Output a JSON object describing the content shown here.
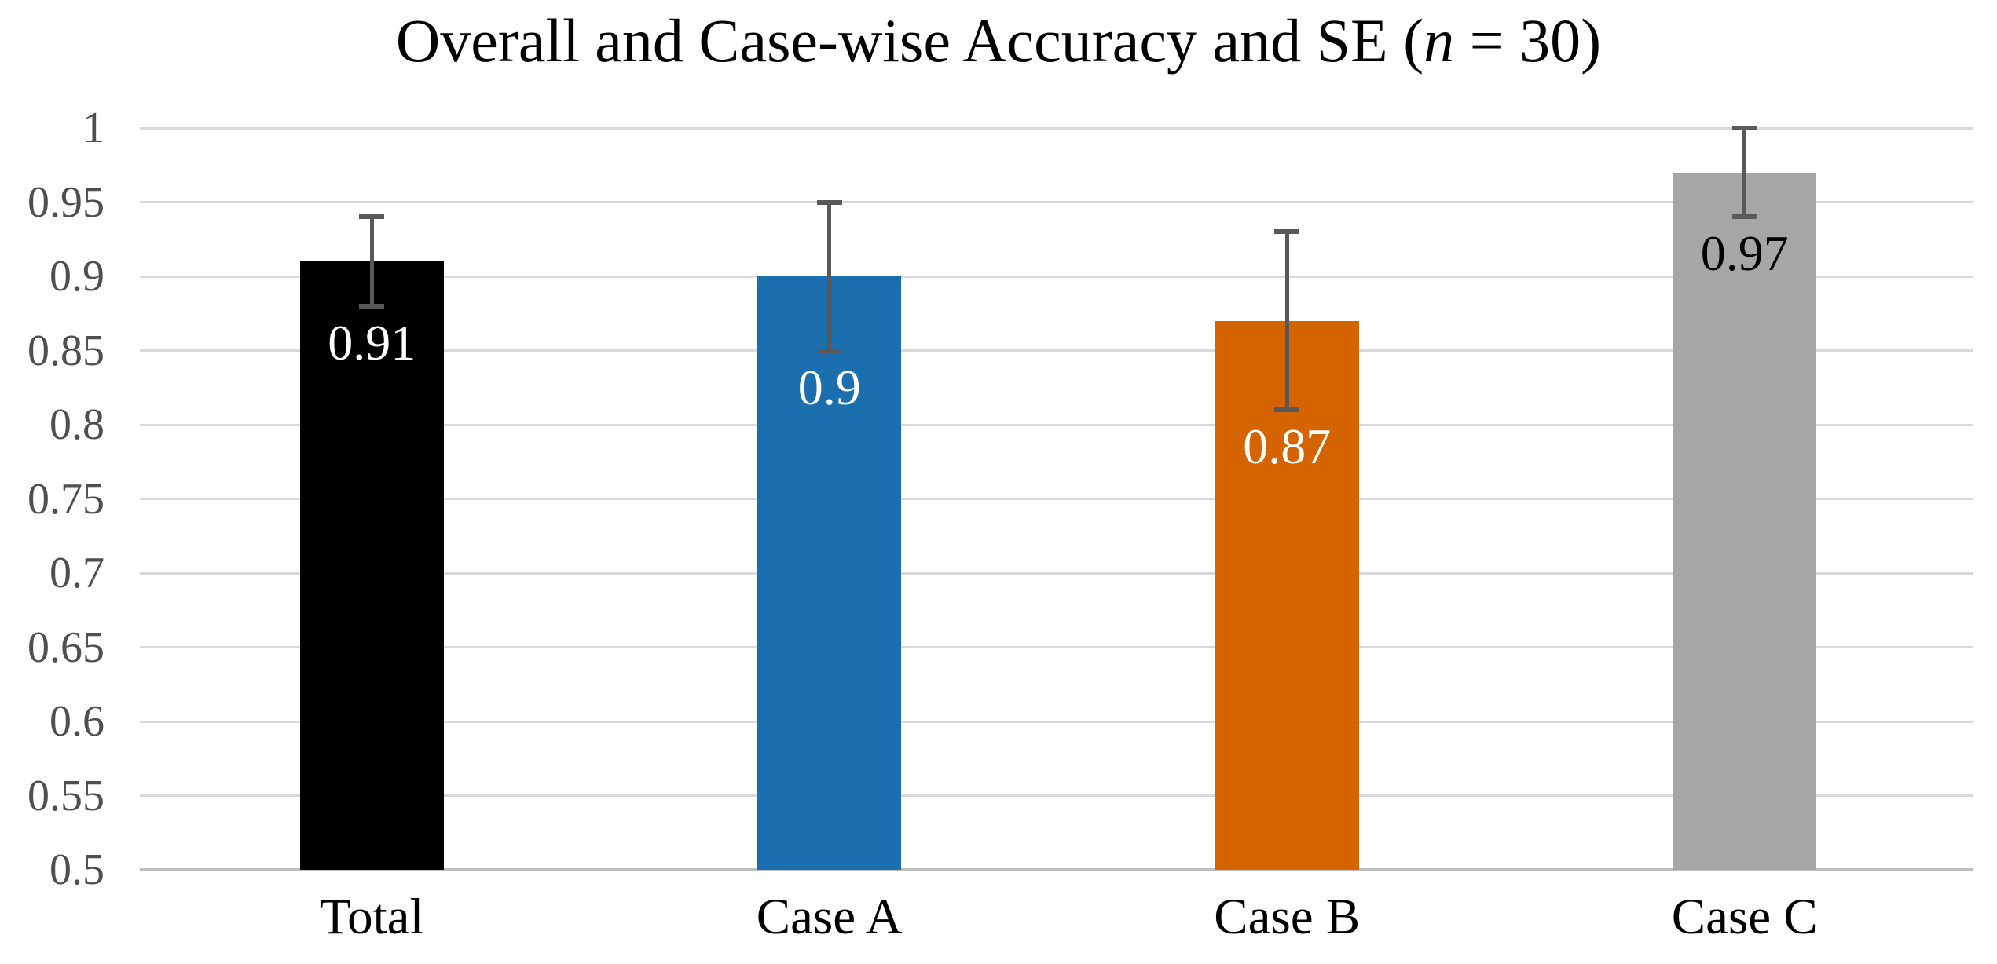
{
  "title": {
    "prefix": "Overall and Case-wise Accuracy and SE (",
    "italic": "n",
    "suffix": " = 30)"
  },
  "chart_data": {
    "type": "bar",
    "title": "Overall and Case-wise Accuracy and SE (n = 30)",
    "categories": [
      "Total",
      "Case A",
      "Case B",
      "Case C"
    ],
    "values": [
      0.91,
      0.9,
      0.87,
      0.97
    ],
    "errors": [
      0.03,
      0.05,
      0.06,
      0.03
    ],
    "error_high": [
      0.94,
      0.95,
      0.93,
      1.0
    ],
    "error_low": [
      0.88,
      0.85,
      0.81,
      0.94
    ],
    "data_labels": [
      "0.91",
      "0.9",
      "0.87",
      "0.97"
    ],
    "bar_colors": [
      "#000000",
      "#1B6FAE",
      "#D56300",
      "#A6A6A6"
    ],
    "data_label_colors": [
      "#FFFFFF",
      "#FFFFFF",
      "#FFFFFF",
      "#000000"
    ],
    "y_ticks": [
      "1",
      "0.95",
      "0.9",
      "0.85",
      "0.8",
      "0.75",
      "0.7",
      "0.65",
      "0.6",
      "0.55",
      "0.5"
    ],
    "ylim": [
      0.5,
      1.0
    ],
    "xlabel": "",
    "ylabel": "",
    "grid": true,
    "legend": "none",
    "gridline_color": "#D9D9D9",
    "axis_line_color": "#BFBFBF",
    "error_bar_color": "#595959",
    "tick_label_color": "#4F4F4F",
    "category_label_color": "#000000"
  }
}
